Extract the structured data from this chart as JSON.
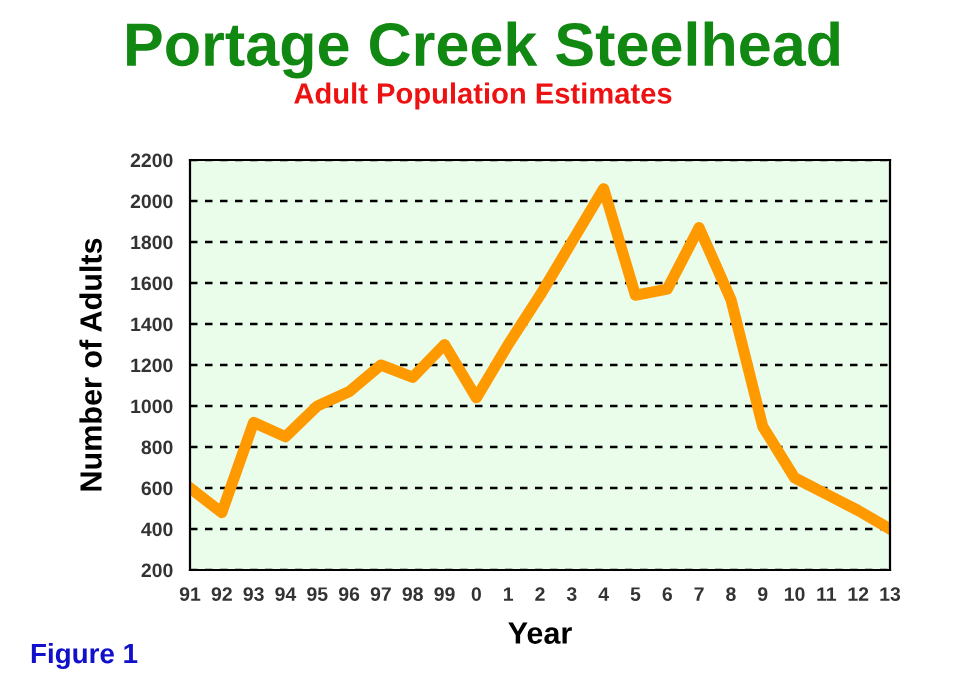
{
  "chart_data": {
    "type": "line",
    "title": "Portage Creek Steelhead",
    "subtitle": "Adult Population Estimates",
    "xlabel": "Year",
    "ylabel": "Number of Adults",
    "annotations": [
      "Figure 1"
    ],
    "categories": [
      "91",
      "92",
      "93",
      "94",
      "95",
      "96",
      "97",
      "98",
      "99",
      "0",
      "1",
      "2",
      "3",
      "4",
      "5",
      "6",
      "7",
      "8",
      "9",
      "10",
      "11",
      "12",
      "13"
    ],
    "series": [
      {
        "color": "#ff9900",
        "values": [
          600,
          480,
          920,
          850,
          1000,
          1070,
          1200,
          1140,
          1300,
          1040,
          1300,
          1540,
          1800,
          2060,
          1540,
          1570,
          1870,
          1520,
          900,
          650,
          570,
          490,
          400
        ]
      }
    ],
    "ylim": [
      200,
      2200
    ],
    "yticks": [
      200,
      400,
      600,
      800,
      1000,
      1200,
      1400,
      1600,
      1800,
      2000,
      2200
    ],
    "grid": "y",
    "line_style": "solid",
    "marker": "none",
    "legend": false
  }
}
